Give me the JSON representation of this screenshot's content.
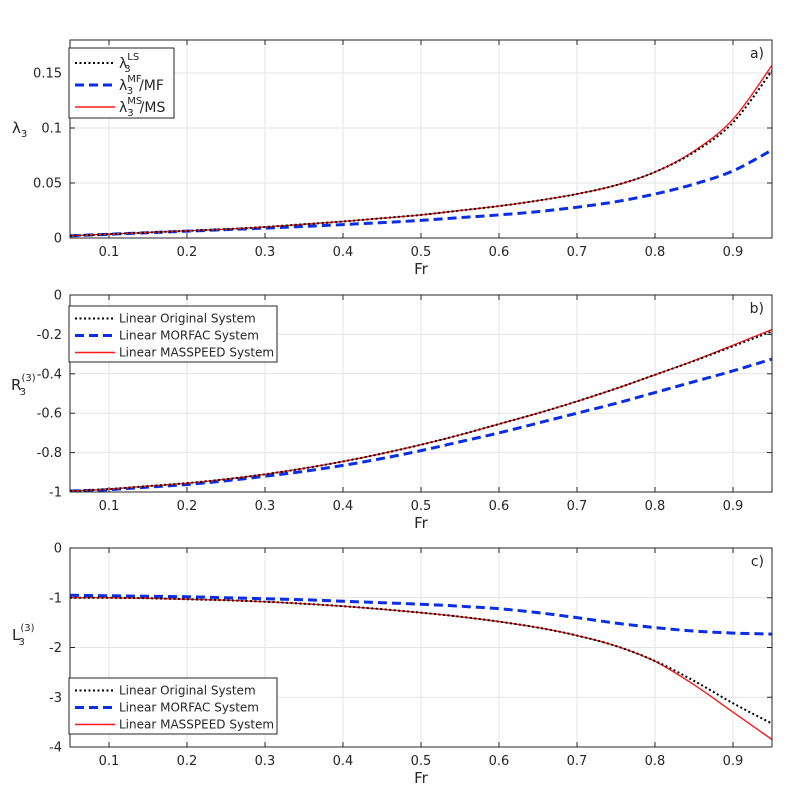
{
  "figure": {
    "panels": [
      "a",
      "b",
      "c"
    ]
  },
  "chart_data": [
    {
      "type": "line",
      "panel_label": "a)",
      "xlabel": "Fr",
      "ylabel": {
        "base": "λ",
        "sub": "3"
      },
      "xlim": [
        0.05,
        0.95
      ],
      "ylim": [
        0,
        0.18
      ],
      "xticks": [
        0.1,
        0.2,
        0.3,
        0.4,
        0.5,
        0.6,
        0.7,
        0.8,
        0.9
      ],
      "xtick_labels": [
        "0.1",
        "0.2",
        "0.3",
        "0.4",
        "0.5",
        "0.6",
        "0.7",
        "0.8",
        "0.9"
      ],
      "yticks": [
        0,
        0.05,
        0.1,
        0.15
      ],
      "ytick_labels": [
        "0",
        "0.05",
        "0.1",
        "0.15"
      ],
      "grid": true,
      "legend_position": "top-left",
      "legend": [
        {
          "base": "λ",
          "sub": "3",
          "sup": "LS",
          "suffix": ""
        },
        {
          "base": "λ",
          "sub": "3",
          "sup": "MF",
          "suffix": "/MF"
        },
        {
          "base": "λ",
          "sub": "3",
          "sup": "MS",
          "suffix": "/MS"
        }
      ],
      "x": [
        0.05,
        0.1,
        0.15,
        0.2,
        0.25,
        0.3,
        0.35,
        0.4,
        0.45,
        0.5,
        0.55,
        0.6,
        0.65,
        0.7,
        0.75,
        0.8,
        0.85,
        0.9,
        0.95
      ],
      "series": [
        {
          "name": "LS",
          "color": "#000000",
          "style": "dotted",
          "values": [
            0.002,
            0.0035,
            0.005,
            0.0065,
            0.008,
            0.01,
            0.0125,
            0.015,
            0.018,
            0.021,
            0.025,
            0.029,
            0.034,
            0.04,
            0.048,
            0.06,
            0.078,
            0.105,
            0.152
          ]
        },
        {
          "name": "MF",
          "color": "#0a2de6",
          "style": "dashed",
          "values": [
            0.002,
            0.0034,
            0.0048,
            0.0062,
            0.0076,
            0.009,
            0.0105,
            0.0122,
            0.014,
            0.016,
            0.0185,
            0.021,
            0.024,
            0.028,
            0.033,
            0.04,
            0.049,
            0.061,
            0.08
          ]
        },
        {
          "name": "MS",
          "color": "#ff1a1a",
          "style": "solid",
          "values": [
            0.002,
            0.0035,
            0.005,
            0.0065,
            0.008,
            0.01,
            0.0125,
            0.015,
            0.018,
            0.021,
            0.025,
            0.029,
            0.034,
            0.04,
            0.048,
            0.06,
            0.079,
            0.108,
            0.157
          ]
        }
      ]
    },
    {
      "type": "line",
      "panel_label": "b)",
      "xlabel": "Fr",
      "ylabel": {
        "base": "R",
        "sub": "3",
        "sup": "(3)"
      },
      "xlim": [
        0.05,
        0.95
      ],
      "ylim": [
        -1,
        0
      ],
      "xticks": [
        0.1,
        0.2,
        0.3,
        0.4,
        0.5,
        0.6,
        0.7,
        0.8,
        0.9
      ],
      "xtick_labels": [
        "0.1",
        "0.2",
        "0.3",
        "0.4",
        "0.5",
        "0.6",
        "0.7",
        "0.8",
        "0.9"
      ],
      "yticks": [
        -1,
        -0.8,
        -0.6,
        -0.4,
        -0.2,
        0
      ],
      "ytick_labels": [
        "-1",
        "-0.8",
        "-0.6",
        "-0.4",
        "-0.2",
        "0"
      ],
      "grid": true,
      "legend_position": "top-left",
      "legend": [
        "Linear Original System",
        "Linear MORFAC System",
        "Linear MASSPEED System"
      ],
      "x": [
        0.05,
        0.1,
        0.15,
        0.2,
        0.25,
        0.3,
        0.35,
        0.4,
        0.45,
        0.5,
        0.55,
        0.6,
        0.65,
        0.7,
        0.75,
        0.8,
        0.85,
        0.9,
        0.95
      ],
      "series": [
        {
          "name": "Linear Original System",
          "color": "#000000",
          "style": "dotted",
          "values": [
            -0.995,
            -0.985,
            -0.97,
            -0.955,
            -0.935,
            -0.91,
            -0.88,
            -0.845,
            -0.805,
            -0.76,
            -0.71,
            -0.655,
            -0.6,
            -0.54,
            -0.475,
            -0.405,
            -0.335,
            -0.26,
            -0.185
          ]
        },
        {
          "name": "Linear MORFAC System",
          "color": "#0a2de6",
          "style": "dashed",
          "values": [
            -0.995,
            -0.988,
            -0.975,
            -0.962,
            -0.943,
            -0.92,
            -0.895,
            -0.865,
            -0.83,
            -0.79,
            -0.745,
            -0.7,
            -0.65,
            -0.6,
            -0.55,
            -0.495,
            -0.44,
            -0.385,
            -0.325
          ]
        },
        {
          "name": "Linear MASSPEED System",
          "color": "#ff1a1a",
          "style": "solid",
          "values": [
            -0.995,
            -0.985,
            -0.97,
            -0.955,
            -0.935,
            -0.91,
            -0.88,
            -0.845,
            -0.805,
            -0.76,
            -0.71,
            -0.655,
            -0.6,
            -0.54,
            -0.475,
            -0.405,
            -0.333,
            -0.255,
            -0.175
          ]
        }
      ]
    },
    {
      "type": "line",
      "panel_label": "c)",
      "xlabel": "Fr",
      "ylabel": {
        "base": "L",
        "sub": "3",
        "sup": "(3)"
      },
      "xlim": [
        0.05,
        0.95
      ],
      "ylim": [
        -4,
        0
      ],
      "xticks": [
        0.1,
        0.2,
        0.3,
        0.4,
        0.5,
        0.6,
        0.7,
        0.8,
        0.9
      ],
      "xtick_labels": [
        "0.1",
        "0.2",
        "0.3",
        "0.4",
        "0.5",
        "0.6",
        "0.7",
        "0.8",
        "0.9"
      ],
      "yticks": [
        -4,
        -3,
        -2,
        -1,
        0
      ],
      "ytick_labels": [
        "-4",
        "-3",
        "-2",
        "-1",
        "0"
      ],
      "grid": true,
      "legend_position": "bottom-left",
      "legend": [
        "Linear Original System",
        "Linear MORFAC System",
        "Linear MASSPEED System"
      ],
      "x": [
        0.05,
        0.1,
        0.15,
        0.2,
        0.25,
        0.3,
        0.35,
        0.4,
        0.45,
        0.5,
        0.55,
        0.6,
        0.65,
        0.7,
        0.75,
        0.8,
        0.85,
        0.9,
        0.95
      ],
      "series": [
        {
          "name": "Linear Original System",
          "color": "#000000",
          "style": "dotted",
          "values": [
            -1.0,
            -1.0,
            -1.01,
            -1.03,
            -1.05,
            -1.08,
            -1.12,
            -1.17,
            -1.23,
            -1.3,
            -1.38,
            -1.48,
            -1.6,
            -1.76,
            -1.97,
            -2.27,
            -2.67,
            -3.12,
            -3.53
          ]
        },
        {
          "name": "Linear MORFAC System",
          "color": "#0a2de6",
          "style": "dashed",
          "values": [
            -0.95,
            -0.96,
            -0.97,
            -0.98,
            -1.0,
            -1.02,
            -1.04,
            -1.07,
            -1.1,
            -1.13,
            -1.17,
            -1.22,
            -1.3,
            -1.4,
            -1.51,
            -1.6,
            -1.67,
            -1.71,
            -1.73
          ]
        },
        {
          "name": "Linear MASSPEED System",
          "color": "#ff1a1a",
          "style": "solid",
          "values": [
            -1.0,
            -1.0,
            -1.01,
            -1.03,
            -1.05,
            -1.08,
            -1.12,
            -1.17,
            -1.23,
            -1.3,
            -1.38,
            -1.48,
            -1.6,
            -1.76,
            -1.97,
            -2.28,
            -2.75,
            -3.3,
            -3.85
          ]
        }
      ]
    }
  ]
}
